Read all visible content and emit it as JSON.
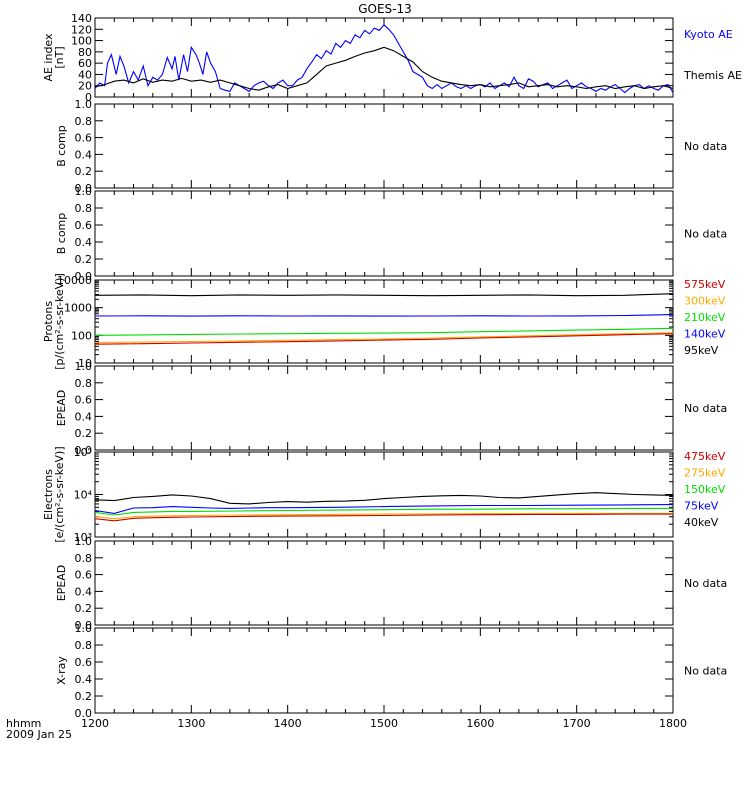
{
  "title": "GOES-13",
  "footer": {
    "line1": "hhmm",
    "line2": "2009 Jan 25"
  },
  "x_axis": {
    "min": 1200,
    "max": 1800,
    "ticks": [
      1200,
      1300,
      1400,
      1500,
      1600,
      1700,
      1800
    ]
  },
  "colors": {
    "black": "#000000",
    "blue": "#0000ff",
    "green": "#00dd00",
    "yellow": "#ffaa00",
    "red": "#cc0000"
  },
  "chart_data": [
    {
      "id": "ae",
      "type": "line",
      "ylabel": "AE index\n[nT]",
      "ylim": [
        0,
        140
      ],
      "yticks": [
        0,
        20,
        40,
        60,
        80,
        100,
        120,
        140
      ],
      "legend": [
        {
          "name": "Kyoto AE",
          "color": "#0000ff"
        },
        {
          "name": "Themis AE",
          "color": "#000000"
        }
      ],
      "series": [
        {
          "name": "Kyoto AE",
          "color": "#0000ff",
          "x": [
            1200,
            1205,
            1210,
            1213,
            1217,
            1222,
            1226,
            1230,
            1235,
            1240,
            1245,
            1250,
            1255,
            1260,
            1265,
            1270,
            1275,
            1280,
            1283,
            1287,
            1292,
            1296,
            1300,
            1305,
            1308,
            1312,
            1316,
            1320,
            1325,
            1330,
            1335,
            1340,
            1345,
            1350,
            1355,
            1360,
            1365,
            1370,
            1375,
            1380,
            1385,
            1390,
            1395,
            1400,
            1405,
            1410,
            1415,
            1420,
            1425,
            1430,
            1435,
            1440,
            1445,
            1450,
            1455,
            1460,
            1465,
            1470,
            1475,
            1480,
            1485,
            1490,
            1495,
            1500,
            1505,
            1510,
            1515,
            1520,
            1525,
            1530,
            1535,
            1540,
            1545,
            1550,
            1555,
            1560,
            1565,
            1570,
            1575,
            1580,
            1585,
            1590,
            1595,
            1600,
            1605,
            1610,
            1615,
            1620,
            1625,
            1630,
            1635,
            1640,
            1645,
            1650,
            1655,
            1660,
            1665,
            1670,
            1675,
            1680,
            1685,
            1690,
            1695,
            1700,
            1705,
            1710,
            1715,
            1720,
            1725,
            1730,
            1735,
            1740,
            1745,
            1750,
            1755,
            1760,
            1765,
            1770,
            1775,
            1780,
            1785,
            1790,
            1795,
            1800
          ],
          "y": [
            15,
            25,
            20,
            60,
            75,
            40,
            72,
            55,
            25,
            45,
            30,
            55,
            20,
            35,
            30,
            40,
            70,
            50,
            72,
            30,
            75,
            45,
            88,
            75,
            62,
            40,
            80,
            60,
            45,
            15,
            12,
            10,
            25,
            20,
            15,
            10,
            20,
            25,
            28,
            20,
            15,
            25,
            30,
            20,
            20,
            30,
            35,
            50,
            62,
            75,
            68,
            82,
            76,
            95,
            88,
            100,
            95,
            110,
            105,
            118,
            112,
            122,
            118,
            128,
            120,
            110,
            95,
            80,
            65,
            45,
            40,
            35,
            20,
            15,
            22,
            15,
            20,
            25,
            18,
            15,
            20,
            15,
            20,
            22,
            18,
            25,
            15,
            20,
            25,
            18,
            35,
            20,
            15,
            32,
            28,
            18,
            22,
            25,
            15,
            20,
            25,
            30,
            15,
            20,
            25,
            18,
            15,
            10,
            15,
            12,
            18,
            22,
            15,
            8,
            15,
            20,
            22,
            15,
            20,
            15,
            12,
            20,
            22,
            8
          ]
        },
        {
          "name": "Themis AE",
          "color": "#000000",
          "x": [
            1200,
            1210,
            1220,
            1230,
            1240,
            1250,
            1260,
            1270,
            1280,
            1290,
            1300,
            1310,
            1320,
            1330,
            1340,
            1350,
            1360,
            1370,
            1380,
            1390,
            1400,
            1410,
            1420,
            1430,
            1440,
            1450,
            1460,
            1470,
            1480,
            1490,
            1500,
            1510,
            1520,
            1530,
            1540,
            1550,
            1560,
            1570,
            1580,
            1590,
            1600,
            1610,
            1620,
            1630,
            1640,
            1650,
            1660,
            1670,
            1680,
            1690,
            1700,
            1710,
            1720,
            1730,
            1740,
            1750,
            1760,
            1770,
            1780,
            1790,
            1800
          ],
          "y": [
            18,
            22,
            28,
            30,
            25,
            32,
            26,
            30,
            28,
            33,
            28,
            30,
            26,
            30,
            25,
            20,
            15,
            12,
            18,
            22,
            15,
            20,
            25,
            40,
            55,
            60,
            65,
            72,
            78,
            82,
            88,
            82,
            72,
            62,
            45,
            35,
            28,
            25,
            22,
            20,
            22,
            18,
            20,
            22,
            25,
            18,
            20,
            22,
            18,
            20,
            18,
            15,
            18,
            20,
            15,
            18,
            20,
            15,
            18,
            20,
            15
          ]
        }
      ]
    },
    {
      "id": "bcomp1",
      "type": "line",
      "ylabel": "B comp",
      "ylim": [
        0,
        1
      ],
      "yticks": [
        0.0,
        0.2,
        0.4,
        0.6,
        0.8,
        1.0
      ],
      "ytick_labels": [
        "0.0",
        "0.2",
        "0.4",
        "0.6",
        "0.8",
        "1.0"
      ],
      "note": "No data",
      "series": []
    },
    {
      "id": "bcomp2",
      "type": "line",
      "ylabel": "B comp",
      "ylim": [
        0,
        1
      ],
      "yticks": [
        0.0,
        0.2,
        0.4,
        0.6,
        0.8,
        1.0
      ],
      "ytick_labels": [
        "0.0",
        "0.2",
        "0.4",
        "0.6",
        "0.8",
        "1.0"
      ],
      "note": "No data",
      "series": []
    },
    {
      "id": "protons",
      "type": "line",
      "log": true,
      "ylabel": "Protons\n[p/(cm²-s-sr-keV)]",
      "ylim": [
        10,
        10000
      ],
      "yticks": [
        10,
        100,
        1000,
        10000
      ],
      "ytick_labels": [
        "10",
        "100",
        "1000",
        "10000"
      ],
      "legend": [
        {
          "name": "575keV",
          "color": "#cc0000"
        },
        {
          "name": "300keV",
          "color": "#ffaa00"
        },
        {
          "name": "210keV",
          "color": "#00dd00"
        },
        {
          "name": "140keV",
          "color": "#0000ff"
        },
        {
          "name": "95keV",
          "color": "#000000"
        }
      ],
      "series": [
        {
          "name": "95keV",
          "color": "#000000",
          "x": [
            1200,
            1250,
            1300,
            1350,
            1400,
            1450,
            1500,
            1550,
            1600,
            1650,
            1700,
            1750,
            1800
          ],
          "y": [
            2800,
            2900,
            2700,
            2900,
            2800,
            2900,
            2800,
            2700,
            2800,
            2900,
            2700,
            2800,
            3200
          ]
        },
        {
          "name": "140keV",
          "color": "#0000ff",
          "x": [
            1200,
            1250,
            1300,
            1350,
            1400,
            1450,
            1500,
            1550,
            1600,
            1650,
            1700,
            1750,
            1800
          ],
          "y": [
            500,
            510,
            495,
            510,
            500,
            505,
            495,
            500,
            510,
            500,
            505,
            520,
            560
          ]
        },
        {
          "name": "210keV",
          "color": "#00dd00",
          "x": [
            1200,
            1250,
            1300,
            1350,
            1400,
            1450,
            1500,
            1550,
            1600,
            1650,
            1700,
            1750,
            1800
          ],
          "y": [
            100,
            104,
            108,
            112,
            115,
            118,
            120,
            125,
            135,
            145,
            155,
            165,
            180
          ]
        },
        {
          "name": "300keV",
          "color": "#ffaa00",
          "x": [
            1200,
            1250,
            1300,
            1350,
            1400,
            1450,
            1500,
            1550,
            1600,
            1650,
            1700,
            1750,
            1800
          ],
          "y": [
            55,
            57,
            60,
            63,
            66,
            70,
            74,
            80,
            88,
            96,
            105,
            115,
            125
          ]
        },
        {
          "name": "575keV",
          "color": "#cc0000",
          "x": [
            1200,
            1250,
            1300,
            1350,
            1400,
            1450,
            1500,
            1550,
            1600,
            1650,
            1700,
            1750,
            1800
          ],
          "y": [
            48,
            50,
            53,
            56,
            59,
            63,
            67,
            72,
            80,
            88,
            96,
            105,
            115
          ]
        }
      ]
    },
    {
      "id": "epead1",
      "type": "line",
      "ylabel": "EPEAD",
      "ylim": [
        0,
        1
      ],
      "yticks": [
        0.0,
        0.2,
        0.4,
        0.6,
        0.8,
        1.0
      ],
      "ytick_labels": [
        "0.0",
        "0.2",
        "0.4",
        "0.6",
        "0.8",
        "1.0"
      ],
      "note": "No data",
      "series": []
    },
    {
      "id": "electrons",
      "type": "line",
      "log": true,
      "ylabel": "Electrons\n[e/(cm²-s-sr-keV)]",
      "ylim": [
        1000,
        100000
      ],
      "yticks": [
        1000,
        10000,
        100000
      ],
      "ytick_labels": [
        "10³",
        "10⁴",
        "10⁵"
      ],
      "legend": [
        {
          "name": "475keV",
          "color": "#cc0000"
        },
        {
          "name": "275keV",
          "color": "#ffaa00"
        },
        {
          "name": "150keV",
          "color": "#00dd00"
        },
        {
          "name": "75keV",
          "color": "#0000ff"
        },
        {
          "name": "40keV",
          "color": "#000000"
        }
      ],
      "series": [
        {
          "name": "40keV",
          "color": "#000000",
          "x": [
            1200,
            1220,
            1240,
            1260,
            1280,
            1300,
            1320,
            1340,
            1360,
            1380,
            1400,
            1420,
            1440,
            1460,
            1480,
            1500,
            1520,
            1540,
            1560,
            1580,
            1600,
            1620,
            1640,
            1660,
            1680,
            1700,
            1720,
            1740,
            1760,
            1780,
            1800
          ],
          "y": [
            7500,
            7200,
            8500,
            9000,
            9800,
            9200,
            8000,
            6200,
            6000,
            6500,
            6800,
            6600,
            6900,
            7000,
            7300,
            8000,
            8500,
            9000,
            9300,
            9500,
            9200,
            8500,
            8300,
            9000,
            9800,
            10500,
            11000,
            10500,
            10000,
            9800,
            9500
          ]
        },
        {
          "name": "75keV",
          "color": "#0000ff",
          "x": [
            1200,
            1220,
            1240,
            1260,
            1280,
            1300,
            1320,
            1340,
            1360,
            1380,
            1400,
            1450,
            1500,
            1550,
            1600,
            1650,
            1700,
            1750,
            1800
          ],
          "y": [
            4200,
            3600,
            4800,
            4900,
            5200,
            5000,
            4800,
            4700,
            4800,
            4900,
            4900,
            5000,
            5200,
            5400,
            5500,
            5500,
            5600,
            5700,
            5800
          ]
        },
        {
          "name": "150keV",
          "color": "#00dd00",
          "x": [
            1200,
            1220,
            1240,
            1260,
            1280,
            1300,
            1350,
            1400,
            1450,
            1500,
            1550,
            1600,
            1650,
            1700,
            1750,
            1800
          ],
          "y": [
            3800,
            3300,
            3800,
            3900,
            4000,
            4000,
            4100,
            4200,
            4300,
            4400,
            4500,
            4500,
            4600,
            4600,
            4700,
            4700
          ]
        },
        {
          "name": "275keV",
          "color": "#ffaa00",
          "x": [
            1200,
            1220,
            1240,
            1260,
            1280,
            1300,
            1350,
            1400,
            1450,
            1500,
            1550,
            1600,
            1650,
            1700,
            1750,
            1800
          ],
          "y": [
            3000,
            2700,
            3000,
            3100,
            3150,
            3200,
            3300,
            3350,
            3400,
            3450,
            3500,
            3550,
            3550,
            3600,
            3600,
            3600
          ]
        },
        {
          "name": "475keV",
          "color": "#cc0000",
          "x": [
            1200,
            1220,
            1240,
            1260,
            1280,
            1300,
            1350,
            1400,
            1450,
            1500,
            1550,
            1600,
            1650,
            1700,
            1750,
            1800
          ],
          "y": [
            2700,
            2400,
            2750,
            2850,
            2900,
            2950,
            3050,
            3100,
            3150,
            3200,
            3300,
            3350,
            3400,
            3400,
            3450,
            3450
          ]
        }
      ]
    },
    {
      "id": "epead2",
      "type": "line",
      "ylabel": "EPEAD",
      "ylim": [
        0,
        1
      ],
      "yticks": [
        0.0,
        0.2,
        0.4,
        0.6,
        0.8,
        1.0
      ],
      "ytick_labels": [
        "0.0",
        "0.2",
        "0.4",
        "0.6",
        "0.8",
        "1.0"
      ],
      "note": "No data",
      "series": []
    },
    {
      "id": "xray",
      "type": "line",
      "ylabel": "X-ray",
      "ylim": [
        0,
        1
      ],
      "yticks": [
        0.0,
        0.2,
        0.4,
        0.6,
        0.8,
        1.0
      ],
      "ytick_labels": [
        "0.0",
        "0.2",
        "0.4",
        "0.6",
        "0.8",
        "1.0"
      ],
      "note": "No data",
      "series": []
    }
  ]
}
